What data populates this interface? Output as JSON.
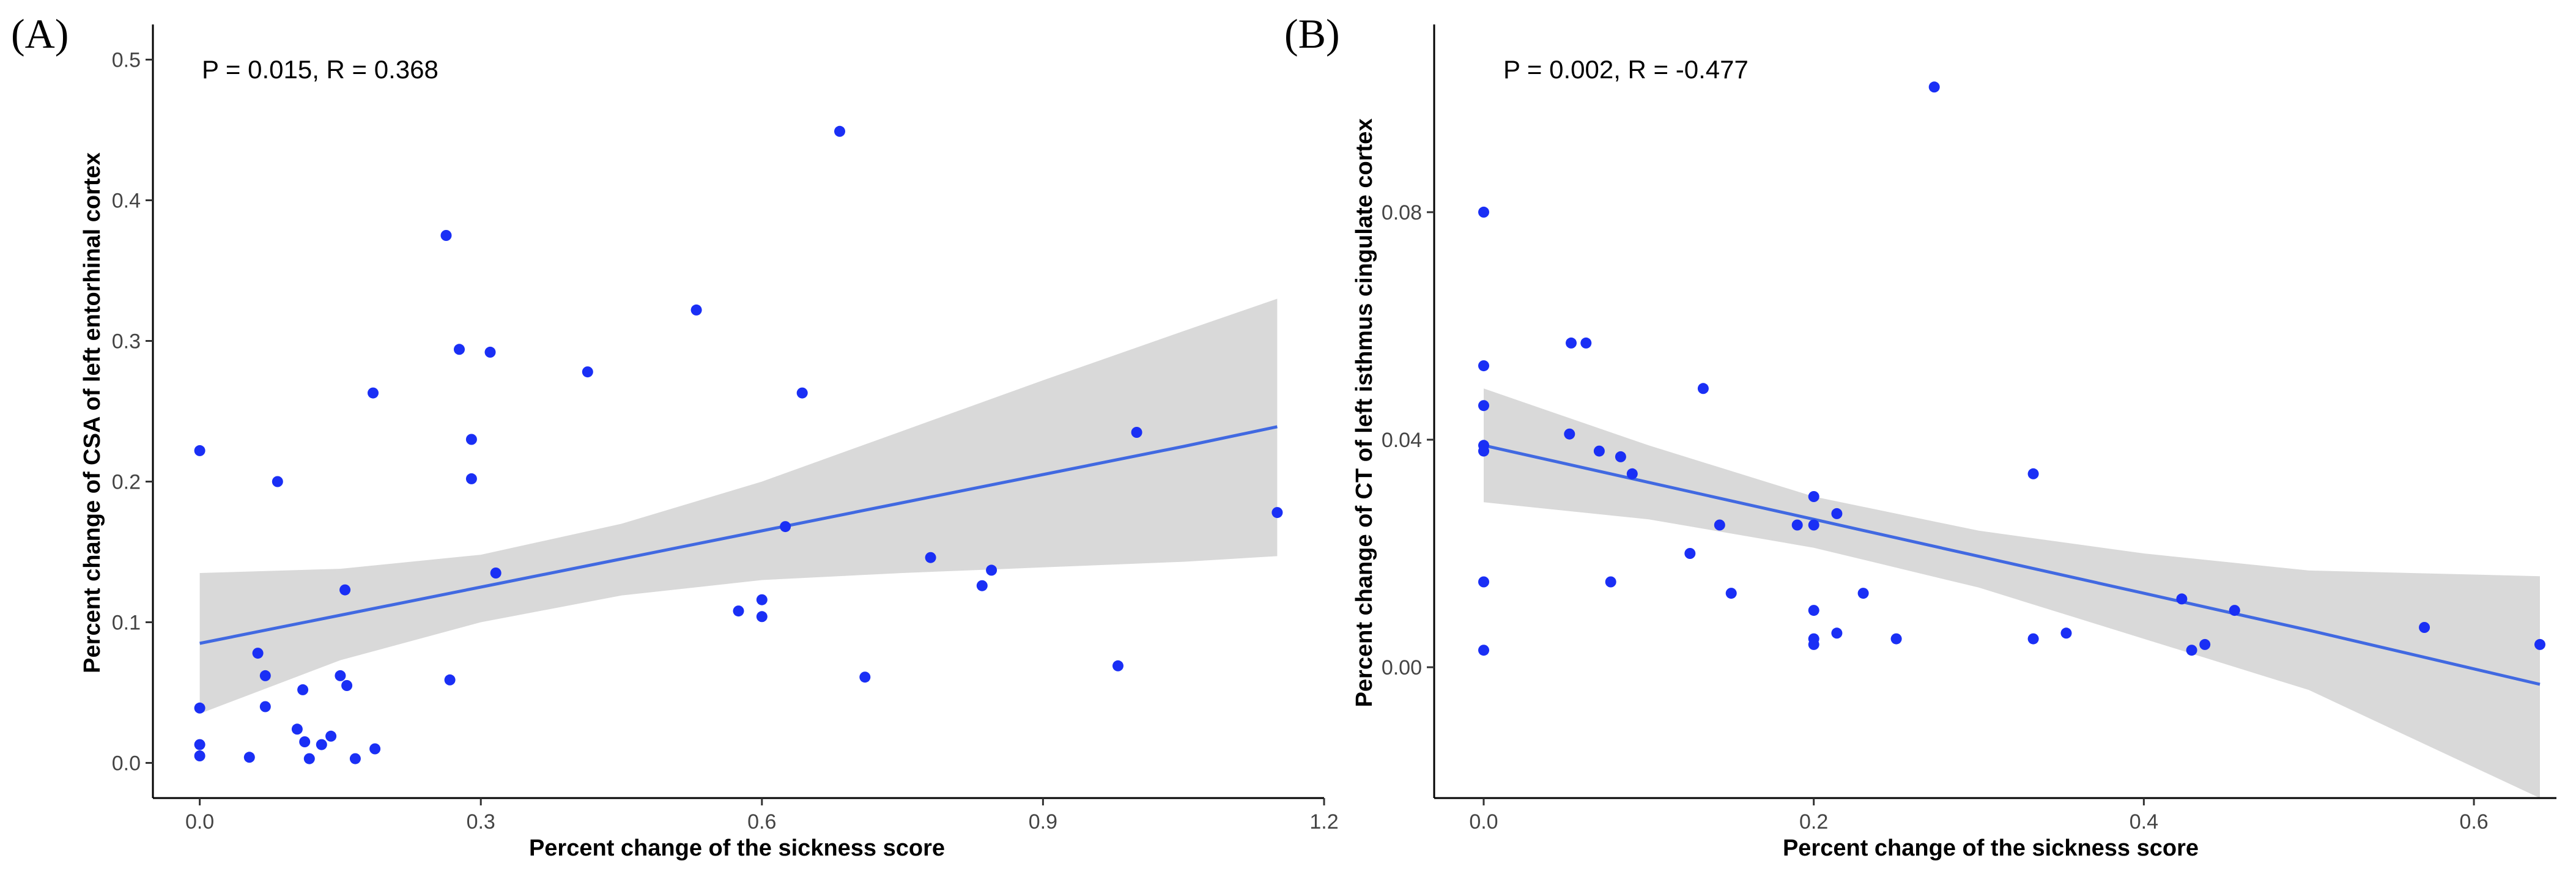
{
  "chart_data": [
    {
      "type": "scatter",
      "panel_label": "(A)",
      "annotation": "P = 0.015, R = 0.368",
      "xlabel": "Percent change of the sickness score",
      "ylabel": "Percent change of CSA of left entorhinal cortex",
      "xlim": [
        -0.05,
        1.2
      ],
      "ylim": [
        -0.025,
        0.525
      ],
      "xticks": [
        0.0,
        0.3,
        0.6,
        0.9,
        1.2
      ],
      "xtick_labels": [
        "0.0",
        "0.3",
        "0.6",
        "0.9",
        "1.2"
      ],
      "yticks": [
        0.0,
        0.1,
        0.2,
        0.3,
        0.4,
        0.5
      ],
      "ytick_labels": [
        "0.0",
        "0.1",
        "0.2",
        "0.3",
        "0.4",
        "0.5"
      ],
      "grid": false,
      "point_color": "#1a2ff5",
      "fit_color": "#4169e1",
      "band_color": "#d9d9d9",
      "points": [
        [
          0.0,
          0.222
        ],
        [
          0.0,
          0.039
        ],
        [
          0.0,
          0.013
        ],
        [
          0.0,
          0.005
        ],
        [
          0.053,
          0.004
        ],
        [
          0.062,
          0.078
        ],
        [
          0.07,
          0.062
        ],
        [
          0.07,
          0.04
        ],
        [
          0.083,
          0.2
        ],
        [
          0.104,
          0.024
        ],
        [
          0.11,
          0.052
        ],
        [
          0.112,
          0.015
        ],
        [
          0.117,
          0.003
        ],
        [
          0.13,
          0.013
        ],
        [
          0.14,
          0.019
        ],
        [
          0.15,
          0.062
        ],
        [
          0.155,
          0.123
        ],
        [
          0.157,
          0.055
        ],
        [
          0.166,
          0.003
        ],
        [
          0.185,
          0.263
        ],
        [
          0.187,
          0.01
        ],
        [
          0.263,
          0.375
        ],
        [
          0.267,
          0.059
        ],
        [
          0.277,
          0.294
        ],
        [
          0.29,
          0.23
        ],
        [
          0.29,
          0.202
        ],
        [
          0.31,
          0.292
        ],
        [
          0.316,
          0.135
        ],
        [
          0.414,
          0.278
        ],
        [
          0.53,
          0.322
        ],
        [
          0.575,
          0.108
        ],
        [
          0.6,
          0.116
        ],
        [
          0.6,
          0.104
        ],
        [
          0.625,
          0.168
        ],
        [
          0.643,
          0.263
        ],
        [
          0.683,
          0.449
        ],
        [
          0.71,
          0.061
        ],
        [
          0.78,
          0.146
        ],
        [
          0.835,
          0.126
        ],
        [
          0.845,
          0.137
        ],
        [
          0.98,
          0.069
        ],
        [
          1.0,
          0.235
        ],
        [
          1.15,
          0.178
        ]
      ],
      "fit_x": [
        0.0,
        0.15,
        0.3,
        0.45,
        0.6,
        0.75,
        0.9,
        1.05,
        1.15
      ],
      "fit_y": [
        0.085,
        0.105,
        0.125,
        0.145,
        0.165,
        0.185,
        0.205,
        0.225,
        0.239
      ],
      "ci_upper": [
        0.135,
        0.138,
        0.148,
        0.17,
        0.2,
        0.236,
        0.272,
        0.307,
        0.33
      ],
      "ci_lower": [
        0.035,
        0.073,
        0.1,
        0.119,
        0.13,
        0.135,
        0.139,
        0.143,
        0.147
      ]
    },
    {
      "type": "scatter",
      "panel_label": "(B)",
      "annotation": "P = 0.002, R = -0.477",
      "xlabel": "Percent change of the sickness score",
      "ylabel": "Percent change of CT of left isthmus cingulate cortex",
      "xlim": [
        -0.03,
        0.65
      ],
      "ylim": [
        -0.023,
        0.113
      ],
      "xticks": [
        0.0,
        0.2,
        0.4,
        0.6
      ],
      "xtick_labels": [
        "0.0",
        "0.2",
        "0.4",
        "0.6"
      ],
      "yticks": [
        0.0,
        0.04,
        0.08
      ],
      "ytick_labels": [
        "0.00",
        "0.04",
        "0.08"
      ],
      "grid": false,
      "point_color": "#1a2ff5",
      "fit_color": "#4169e1",
      "band_color": "#d9d9d9",
      "points": [
        [
          0.0,
          0.08
        ],
        [
          0.0,
          0.053
        ],
        [
          0.0,
          0.046
        ],
        [
          0.0,
          0.039
        ],
        [
          0.0,
          0.038
        ],
        [
          0.0,
          0.015
        ],
        [
          0.0,
          0.003
        ],
        [
          0.053,
          0.057
        ],
        [
          0.062,
          0.057
        ],
        [
          0.052,
          0.041
        ],
        [
          0.07,
          0.038
        ],
        [
          0.077,
          0.015
        ],
        [
          0.083,
          0.037
        ],
        [
          0.09,
          0.034
        ],
        [
          0.125,
          0.02
        ],
        [
          0.133,
          0.049
        ],
        [
          0.143,
          0.025
        ],
        [
          0.15,
          0.013
        ],
        [
          0.19,
          0.025
        ],
        [
          0.2,
          0.03
        ],
        [
          0.2,
          0.025
        ],
        [
          0.2,
          0.01
        ],
        [
          0.2,
          0.005
        ],
        [
          0.2,
          0.004
        ],
        [
          0.214,
          0.027
        ],
        [
          0.214,
          0.006
        ],
        [
          0.23,
          0.013
        ],
        [
          0.25,
          0.005
        ],
        [
          0.273,
          0.102
        ],
        [
          0.333,
          0.034
        ],
        [
          0.333,
          0.005
        ],
        [
          0.353,
          0.006
        ],
        [
          0.423,
          0.012
        ],
        [
          0.429,
          0.003
        ],
        [
          0.437,
          0.004
        ],
        [
          0.455,
          0.01
        ],
        [
          0.57,
          0.007
        ],
        [
          0.64,
          0.004
        ]
      ],
      "fit_x": [
        0.0,
        0.1,
        0.2,
        0.3,
        0.4,
        0.5,
        0.64
      ],
      "fit_y": [
        0.039,
        0.0325,
        0.026,
        0.0195,
        0.013,
        0.0065,
        -0.003
      ],
      "ci_upper": [
        0.049,
        0.039,
        0.03,
        0.024,
        0.02,
        0.017,
        0.016
      ],
      "ci_lower": [
        0.029,
        0.026,
        0.021,
        0.014,
        0.005,
        -0.004,
        -0.023
      ]
    }
  ]
}
